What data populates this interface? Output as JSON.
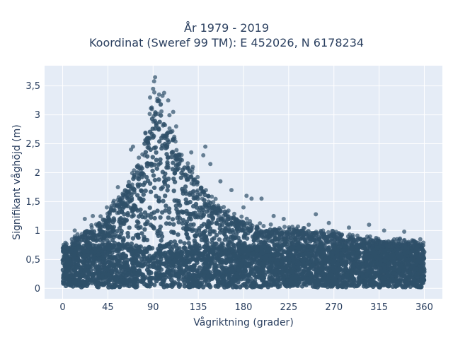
{
  "chart_data": {
    "type": "scatter",
    "title_line1": "År 1979 - 2019",
    "title_line2": "Koordinat (Sweref 99 TM): E 452026, N 6178234",
    "xlabel": "Vågriktning (grader)",
    "ylabel": "Signifikant våghöjd (m)",
    "xlim": [
      -18,
      378
    ],
    "ylim": [
      -0.18,
      3.85
    ],
    "x_ticks": [
      0,
      45,
      90,
      135,
      180,
      225,
      270,
      315,
      360
    ],
    "x_tick_labels": [
      "0",
      "45",
      "90",
      "135",
      "180",
      "225",
      "270",
      "315",
      "360"
    ],
    "y_ticks": [
      0,
      0.5,
      1,
      1.5,
      2,
      2.5,
      3,
      3.5
    ],
    "y_tick_labels": [
      "0",
      "0,5",
      "1",
      "1,5",
      "2",
      "2,5",
      "3",
      "3,5"
    ],
    "grid": true,
    "marker_color": "#2f5069",
    "plot_bg": "#e5ecf6",
    "upper_envelope": {
      "x": [
        0,
        10,
        20,
        30,
        40,
        50,
        60,
        70,
        80,
        85,
        90,
        95,
        100,
        105,
        110,
        120,
        130,
        140,
        150,
        160,
        170,
        180,
        200,
        220,
        240,
        260,
        280,
        300,
        320,
        340,
        360
      ],
      "y": [
        0.7,
        0.85,
        0.95,
        1.05,
        1.2,
        1.4,
        1.65,
        1.9,
        2.4,
        2.75,
        3.2,
        3.3,
        3.1,
        2.9,
        2.6,
        2.2,
        1.95,
        1.7,
        1.5,
        1.35,
        1.25,
        1.15,
        1.05,
        1.0,
        1.0,
        0.95,
        0.9,
        0.85,
        0.82,
        0.8,
        0.75
      ]
    },
    "outliers": [
      {
        "x": 92,
        "y": 3.65
      },
      {
        "x": 91,
        "y": 3.58
      },
      {
        "x": 90,
        "y": 3.45
      },
      {
        "x": 87,
        "y": 3.3
      },
      {
        "x": 96,
        "y": 3.35
      },
      {
        "x": 101,
        "y": 3.38
      },
      {
        "x": 105,
        "y": 3.25
      },
      {
        "x": 110,
        "y": 3.05
      },
      {
        "x": 113,
        "y": 2.8
      },
      {
        "x": 70,
        "y": 2.45
      },
      {
        "x": 68,
        "y": 2.4
      },
      {
        "x": 78,
        "y": 2.1
      },
      {
        "x": 55,
        "y": 1.75
      },
      {
        "x": 60,
        "y": 1.5
      },
      {
        "x": 44,
        "y": 1.4
      },
      {
        "x": 30,
        "y": 1.25
      },
      {
        "x": 22,
        "y": 1.2
      },
      {
        "x": 12,
        "y": 1.0
      },
      {
        "x": 142,
        "y": 2.45
      },
      {
        "x": 140,
        "y": 2.3
      },
      {
        "x": 128,
        "y": 2.35
      },
      {
        "x": 147,
        "y": 2.15
      },
      {
        "x": 157,
        "y": 1.85
      },
      {
        "x": 168,
        "y": 1.7
      },
      {
        "x": 183,
        "y": 1.6
      },
      {
        "x": 188,
        "y": 1.55
      },
      {
        "x": 198,
        "y": 1.55
      },
      {
        "x": 180,
        "y": 1.4
      },
      {
        "x": 210,
        "y": 1.25
      },
      {
        "x": 220,
        "y": 1.2
      },
      {
        "x": 252,
        "y": 1.28
      },
      {
        "x": 265,
        "y": 1.13
      },
      {
        "x": 245,
        "y": 1.1
      },
      {
        "x": 285,
        "y": 1.05
      },
      {
        "x": 305,
        "y": 1.1
      },
      {
        "x": 320,
        "y": 1.0
      },
      {
        "x": 340,
        "y": 0.98
      },
      {
        "x": 356,
        "y": 0.85
      }
    ]
  }
}
